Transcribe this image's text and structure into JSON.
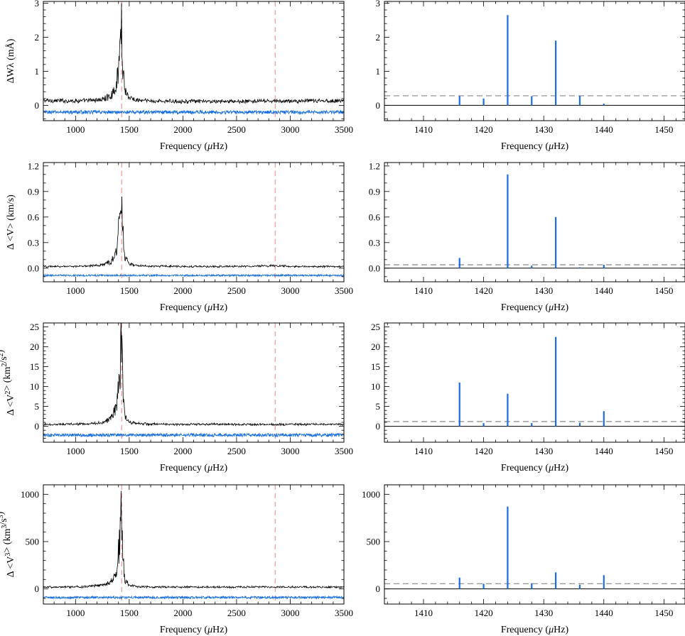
{
  "style": {
    "trace_color": "#000000",
    "noise_color": "#1a6fe0",
    "stem_color": "#1a6fe0",
    "vline_color": "#f2a5a0",
    "threshold_color": "#888888"
  },
  "chart_data": [
    {
      "type": "line",
      "panel": "row1-left",
      "xlabel": "Frequency (μHz)",
      "ylabel": "ΔWλ (mÅ)",
      "xlim": [
        700,
        3500
      ],
      "ylim": [
        -0.45,
        3.05
      ],
      "xticks": [
        1000,
        1500,
        2000,
        2500,
        3000,
        3500
      ],
      "yticks": [
        0,
        1,
        2,
        3
      ],
      "ytick_labels": [
        "0",
        "1",
        "2",
        "3"
      ],
      "vlines": [
        1430,
        2860
      ],
      "series": [
        {
          "role": "amplitude",
          "x": [
            700,
            900,
            1100,
            1250,
            1330,
            1380,
            1410,
            1425,
            1432,
            1440,
            1460,
            1500,
            1560,
            1700,
            2000,
            2500,
            3000,
            3500
          ],
          "y": [
            0.15,
            0.14,
            0.14,
            0.18,
            0.3,
            0.6,
            1.5,
            2.6,
            2.2,
            1.3,
            0.5,
            0.24,
            0.16,
            0.13,
            0.12,
            0.12,
            0.13,
            0.14
          ],
          "noise": 0.05
        },
        {
          "role": "noise",
          "x": [
            700,
            3500
          ],
          "y": [
            -0.2,
            -0.2
          ],
          "noise": 0.05
        }
      ]
    },
    {
      "type": "bar",
      "panel": "row1-right",
      "xlabel": "Frequency (μHz)",
      "xlim": [
        1403.5,
        1453.5
      ],
      "ylim": [
        -0.45,
        3.05
      ],
      "xticks": [
        1410,
        1420,
        1430,
        1440,
        1450
      ],
      "yticks": [
        0,
        1,
        2,
        3
      ],
      "ytick_labels": [
        "0",
        "1",
        "2",
        "3"
      ],
      "threshold": 0.28,
      "x": [
        1416,
        1420,
        1424,
        1428,
        1432,
        1436,
        1440
      ],
      "values": [
        0.27,
        0.2,
        2.65,
        0.27,
        1.9,
        0.28,
        0.05
      ]
    },
    {
      "type": "line",
      "panel": "row2-left",
      "xlabel": "Frequency (μHz)",
      "ylabel": "Δ <V> (km/s)",
      "xlim": [
        700,
        3500
      ],
      "ylim": [
        -0.16,
        1.24
      ],
      "xticks": [
        1000,
        1500,
        2000,
        2500,
        3000,
        3500
      ],
      "yticks": [
        0,
        0.3,
        0.6,
        0.9,
        1.2
      ],
      "ytick_labels": [
        "0.0",
        "0.3",
        "0.6",
        "0.9",
        "1.2"
      ],
      "vlines": [
        1430,
        2860
      ],
      "series": [
        {
          "role": "amplitude",
          "x": [
            700,
            900,
            1100,
            1250,
            1330,
            1380,
            1410,
            1425,
            1432,
            1440,
            1460,
            1500,
            1560,
            1700,
            2000,
            2500,
            2850,
            2870,
            3000,
            3500
          ],
          "y": [
            0.02,
            0.02,
            0.025,
            0.04,
            0.08,
            0.2,
            0.6,
            1.08,
            0.9,
            0.5,
            0.15,
            0.05,
            0.03,
            0.025,
            0.02,
            0.02,
            0.03,
            0.03,
            0.02,
            0.02
          ],
          "noise": 0.012
        },
        {
          "role": "noise",
          "x": [
            700,
            3500
          ],
          "y": [
            -0.085,
            -0.085
          ],
          "noise": 0.01
        }
      ]
    },
    {
      "type": "bar",
      "panel": "row2-right",
      "xlabel": "Frequency (μHz)",
      "xlim": [
        1403.5,
        1453.5
      ],
      "ylim": [
        -0.16,
        1.24
      ],
      "xticks": [
        1410,
        1420,
        1430,
        1440,
        1450
      ],
      "yticks": [
        0,
        0.3,
        0.6,
        0.9,
        1.2
      ],
      "ytick_labels": [
        "0.0",
        "0.3",
        "0.6",
        "0.9",
        "1.2"
      ],
      "threshold": 0.04,
      "x": [
        1416,
        1420,
        1424,
        1428,
        1432,
        1436,
        1440
      ],
      "values": [
        0.12,
        0.0,
        1.1,
        0.03,
        0.6,
        0.01,
        0.04
      ]
    },
    {
      "type": "line",
      "panel": "row3-left",
      "xlabel": "Frequency (μHz)",
      "ylabel": "Δ <V2> (km2/s2)",
      "xlim": [
        700,
        3500
      ],
      "ylim": [
        -4,
        26
      ],
      "xticks": [
        1000,
        1500,
        2000,
        2500,
        3000,
        3500
      ],
      "yticks": [
        0,
        5,
        10,
        15,
        20,
        25
      ],
      "ytick_labels": [
        "0",
        "5",
        "10",
        "15",
        "20",
        "25"
      ],
      "vlines": [
        1430,
        2860
      ],
      "series": [
        {
          "role": "amplitude",
          "x": [
            700,
            900,
            1100,
            1250,
            1330,
            1380,
            1410,
            1425,
            1432,
            1440,
            1460,
            1500,
            1560,
            1700,
            2000,
            2500,
            3000,
            3500
          ],
          "y": [
            0.5,
            0.5,
            0.6,
            1.0,
            2.0,
            5.0,
            12.0,
            22.0,
            19.0,
            10.0,
            3.0,
            1.2,
            0.8,
            0.6,
            0.5,
            0.5,
            0.5,
            0.5
          ],
          "noise": 0.3
        },
        {
          "role": "noise",
          "x": [
            700,
            3500
          ],
          "y": [
            -2.2,
            -2.2
          ],
          "noise": 0.4
        }
      ]
    },
    {
      "type": "bar",
      "panel": "row3-right",
      "xlabel": "Frequency (μHz)",
      "xlim": [
        1403.5,
        1453.5
      ],
      "ylim": [
        -4,
        26
      ],
      "xticks": [
        1410,
        1420,
        1430,
        1440,
        1450
      ],
      "yticks": [
        0,
        5,
        10,
        15,
        20,
        25
      ],
      "ytick_labels": [
        "0",
        "5",
        "10",
        "15",
        "20",
        "25"
      ],
      "threshold": 1.2,
      "x": [
        1416,
        1420,
        1424,
        1428,
        1432,
        1436,
        1440
      ],
      "values": [
        11.0,
        0.8,
        8.2,
        0.8,
        22.5,
        0.9,
        3.8
      ]
    },
    {
      "type": "line",
      "panel": "row4-left",
      "xlabel": "Frequency (μHz)",
      "ylabel": "Δ <V3> (km3/s3)",
      "xlim": [
        700,
        3500
      ],
      "ylim": [
        -160,
        1100
      ],
      "xticks": [
        1000,
        1500,
        2000,
        2500,
        3000,
        3500
      ],
      "yticks": [
        0,
        500,
        1000
      ],
      "ytick_labels": [
        "0",
        "500",
        "1000"
      ],
      "vlines": [
        1430,
        2860
      ],
      "series": [
        {
          "role": "amplitude",
          "x": [
            700,
            900,
            1100,
            1250,
            1330,
            1380,
            1410,
            1425,
            1432,
            1440,
            1460,
            1500,
            1560,
            1700,
            2000,
            2500,
            3000,
            3500
          ],
          "y": [
            20,
            20,
            25,
            40,
            80,
            200,
            550,
            880,
            700,
            350,
            100,
            40,
            25,
            20,
            20,
            20,
            20,
            20
          ],
          "noise": 10
        },
        {
          "role": "noise",
          "x": [
            700,
            3500
          ],
          "y": [
            -90,
            -90
          ],
          "noise": 12
        }
      ]
    },
    {
      "type": "bar",
      "panel": "row4-right",
      "xlabel": "Frequency (μHz)",
      "xlim": [
        1403.5,
        1453.5
      ],
      "ylim": [
        -160,
        1100
      ],
      "xticks": [
        1410,
        1420,
        1430,
        1440,
        1450
      ],
      "yticks": [
        0,
        500,
        1000
      ],
      "ytick_labels": [
        "0",
        "500",
        "1000"
      ],
      "threshold": 55,
      "x": [
        1416,
        1420,
        1424,
        1428,
        1432,
        1436,
        1440
      ],
      "values": [
        120,
        55,
        870,
        60,
        175,
        45,
        145
      ]
    }
  ]
}
